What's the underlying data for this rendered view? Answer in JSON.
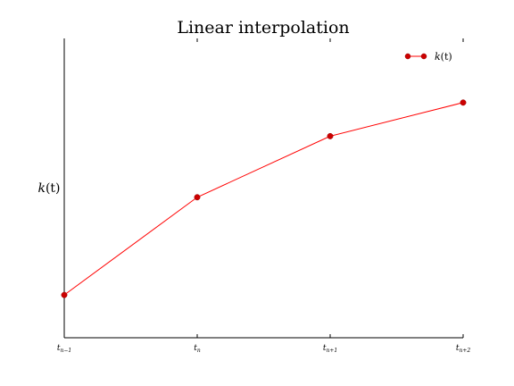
{
  "chart_data": {
    "type": "line",
    "title": "Linear interpolation",
    "xlabel": "",
    "ylabel_symbol": "k",
    "ylabel_arg": "(t)",
    "categories": [
      {
        "base": "t",
        "sub": "n−1"
      },
      {
        "base": "t",
        "sub": "n"
      },
      {
        "base": "t",
        "sub": "n+1"
      },
      {
        "base": "t",
        "sub": "n+2"
      }
    ],
    "x": [
      0,
      1,
      2,
      3
    ],
    "series": [
      {
        "name": "k(t)",
        "name_symbol": "k",
        "name_arg": "(t)",
        "values": [
          1.0,
          2.6,
          3.6,
          4.15
        ],
        "color": "#ff0000",
        "marker_color": "#cc0000"
      }
    ],
    "xlim": [
      0,
      3
    ],
    "ylim": [
      0.3,
      5.2
    ],
    "yticks_shown": false,
    "grid": false,
    "legend_position": "top-right"
  }
}
